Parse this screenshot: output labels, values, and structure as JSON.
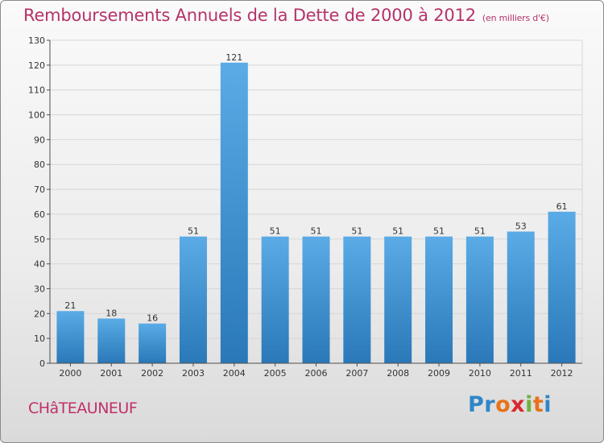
{
  "title": {
    "main": "Remboursements Annuels de la Dette de 2000 à 2012",
    "unit": "(en milliers d'€)"
  },
  "commune": "CHâTEAUNEUF",
  "logo": {
    "letters": [
      "Pr",
      "o",
      "x",
      "i",
      "t",
      "i"
    ],
    "text": "Proxiti"
  },
  "colors": {
    "title": "#b5336a",
    "bar_top": "#5aabe6",
    "bar_bottom": "#2a78b8",
    "grid": "#d6d6d6",
    "axis": "#4d4d4d"
  },
  "chart_data": {
    "type": "bar",
    "categories": [
      "2000",
      "2001",
      "2002",
      "2003",
      "2004",
      "2005",
      "2006",
      "2007",
      "2008",
      "2009",
      "2010",
      "2011",
      "2012"
    ],
    "values": [
      21,
      18,
      16,
      51,
      121,
      51,
      51,
      51,
      51,
      51,
      51,
      53,
      61
    ],
    "data_labels": [
      "21",
      "18",
      "16",
      "51",
      "121",
      "51",
      "51",
      "51",
      "51",
      "51",
      "51",
      "53",
      "61"
    ],
    "ylim": [
      0,
      130
    ],
    "yticks": [
      0,
      10,
      20,
      30,
      40,
      50,
      60,
      70,
      80,
      90,
      100,
      110,
      120,
      130
    ],
    "grid": true,
    "xlabel": "",
    "ylabel": ""
  }
}
